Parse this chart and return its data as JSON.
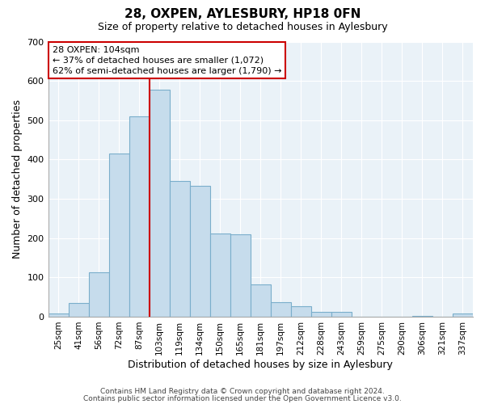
{
  "title": "28, OXPEN, AYLESBURY, HP18 0FN",
  "subtitle": "Size of property relative to detached houses in Aylesbury",
  "xlabel": "Distribution of detached houses by size in Aylesbury",
  "ylabel": "Number of detached properties",
  "bar_labels": [
    "25sqm",
    "41sqm",
    "56sqm",
    "72sqm",
    "87sqm",
    "103sqm",
    "119sqm",
    "134sqm",
    "150sqm",
    "165sqm",
    "181sqm",
    "197sqm",
    "212sqm",
    "228sqm",
    "243sqm",
    "259sqm",
    "275sqm",
    "290sqm",
    "306sqm",
    "321sqm",
    "337sqm"
  ],
  "bar_values": [
    8,
    35,
    112,
    415,
    510,
    578,
    346,
    333,
    212,
    210,
    83,
    37,
    26,
    13,
    13,
    0,
    0,
    0,
    2,
    0,
    8
  ],
  "bar_color": "#c6dcec",
  "bar_edge_color": "#7aaecb",
  "vline_color": "#cc0000",
  "ylim": [
    0,
    700
  ],
  "yticks": [
    0,
    100,
    200,
    300,
    400,
    500,
    600,
    700
  ],
  "annotation_title": "28 OXPEN: 104sqm",
  "annotation_line1": "← 37% of detached houses are smaller (1,072)",
  "annotation_line2": "62% of semi-detached houses are larger (1,790) →",
  "annotation_box_facecolor": "#ffffff",
  "annotation_box_edgecolor": "#cc0000",
  "footnote1": "Contains HM Land Registry data © Crown copyright and database right 2024.",
  "footnote2": "Contains public sector information licensed under the Open Government Licence v3.0.",
  "fig_facecolor": "#ffffff",
  "axes_facecolor": "#eaf2f8",
  "grid_color": "#ffffff",
  "title_fontsize": 11,
  "subtitle_fontsize": 9,
  "label_fontsize": 9,
  "tick_fontsize": 7.5,
  "annot_fontsize": 8,
  "footnote_fontsize": 6.5
}
